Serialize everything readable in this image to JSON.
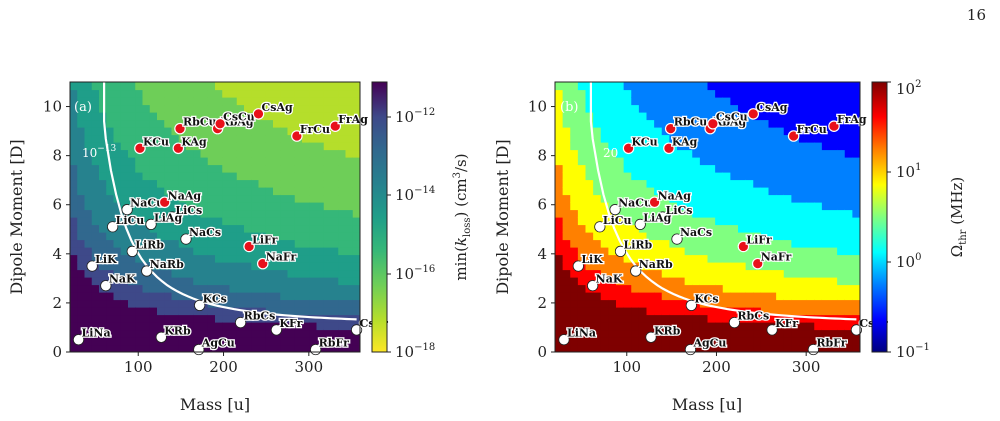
{
  "page_number": "16",
  "chart_data": [
    {
      "type": "heatmap",
      "panel_label": "(a)",
      "xlabel": "Mass [u]",
      "ylabel": "Dipole Moment [D]",
      "xlim": [
        20,
        360
      ],
      "ylim": [
        0,
        11
      ],
      "xticks": [
        100,
        200,
        300
      ],
      "yticks": [
        0,
        2,
        4,
        6,
        8,
        10
      ],
      "colorbar": {
        "label": "min(k_loss) (cm^3/s)",
        "scale": "log",
        "range": [
          1e-18,
          1e-11
        ],
        "reversed": true,
        "ticks": [
          "10^{-12}",
          "10^{-14}",
          "10^{-16}",
          "10^{-18}"
        ],
        "colormap": "viridis"
      },
      "contour": {
        "label": "10^{-13}"
      },
      "points": [
        {
          "name": "LiNa",
          "mass": 30,
          "dipole": 0.5,
          "color": "white"
        },
        {
          "name": "LiK",
          "mass": 46,
          "dipole": 3.5,
          "color": "white"
        },
        {
          "name": "NaK",
          "mass": 62,
          "dipole": 2.7,
          "color": "white"
        },
        {
          "name": "LiCs",
          "mass": 140,
          "dipole": 5.5,
          "color": "white"
        },
        {
          "name": "LiCu",
          "mass": 70,
          "dipole": 5.1,
          "color": "white"
        },
        {
          "name": "LiRb",
          "mass": 93,
          "dipole": 4.1,
          "color": "white"
        },
        {
          "name": "NaRb",
          "mass": 110,
          "dipole": 3.3,
          "color": "white"
        },
        {
          "name": "NaCu",
          "mass": 87,
          "dipole": 5.8,
          "color": "white"
        },
        {
          "name": "LiAg",
          "mass": 115,
          "dipole": 5.2,
          "color": "white"
        },
        {
          "name": "NaCs",
          "mass": 156,
          "dipole": 4.6,
          "color": "white"
        },
        {
          "name": "KRb",
          "mass": 127,
          "dipole": 0.6,
          "color": "white"
        },
        {
          "name": "KCs",
          "mass": 172,
          "dipole": 1.9,
          "color": "white"
        },
        {
          "name": "AgCu",
          "mass": 171,
          "dipole": 0.1,
          "color": "white"
        },
        {
          "name": "RbCs",
          "mass": 220,
          "dipole": 1.2,
          "color": "white"
        },
        {
          "name": "KFr",
          "mass": 262,
          "dipole": 0.9,
          "color": "white"
        },
        {
          "name": "CsFr",
          "mass": 356,
          "dipole": 0.9,
          "color": "white"
        },
        {
          "name": "RbFr",
          "mass": 308,
          "dipole": 0.1,
          "color": "white"
        },
        {
          "name": "NaAg",
          "mass": 131,
          "dipole": 6.1,
          "color": "red"
        },
        {
          "name": "KCu",
          "mass": 102,
          "dipole": 8.3,
          "color": "red"
        },
        {
          "name": "KAg",
          "mass": 147,
          "dipole": 8.3,
          "color": "red"
        },
        {
          "name": "RbCu",
          "mass": 149,
          "dipole": 9.1,
          "color": "red"
        },
        {
          "name": "RbAg",
          "mass": 193,
          "dipole": 9.1,
          "color": "red"
        },
        {
          "name": "CsCu",
          "mass": 196,
          "dipole": 9.3,
          "color": "red"
        },
        {
          "name": "CsAg",
          "mass": 241,
          "dipole": 9.7,
          "color": "red"
        },
        {
          "name": "FrCu",
          "mass": 286,
          "dipole": 8.8,
          "color": "red"
        },
        {
          "name": "FrAg",
          "mass": 331,
          "dipole": 9.2,
          "color": "red"
        },
        {
          "name": "LiFr",
          "mass": 230,
          "dipole": 4.3,
          "color": "red"
        },
        {
          "name": "NaFr",
          "mass": 246,
          "dipole": 3.6,
          "color": "red"
        }
      ]
    },
    {
      "type": "heatmap",
      "panel_label": "(b)",
      "xlabel": "Mass [u]",
      "ylabel": "Dipole Moment [D]",
      "xlim": [
        20,
        360
      ],
      "ylim": [
        0,
        11
      ],
      "xticks": [
        100,
        200,
        300
      ],
      "yticks": [
        0,
        2,
        4,
        6,
        8,
        10
      ],
      "colorbar": {
        "label": "Ω_thr (MHz)",
        "scale": "log",
        "range": [
          0.1,
          100
        ],
        "reversed": false,
        "ticks": [
          "10^{2}",
          "10^{1}",
          "10^{0}",
          "10^{-1}"
        ],
        "colormap": "jet"
      },
      "contour": {
        "label": "20"
      },
      "points_same_as_panel": "a"
    }
  ]
}
